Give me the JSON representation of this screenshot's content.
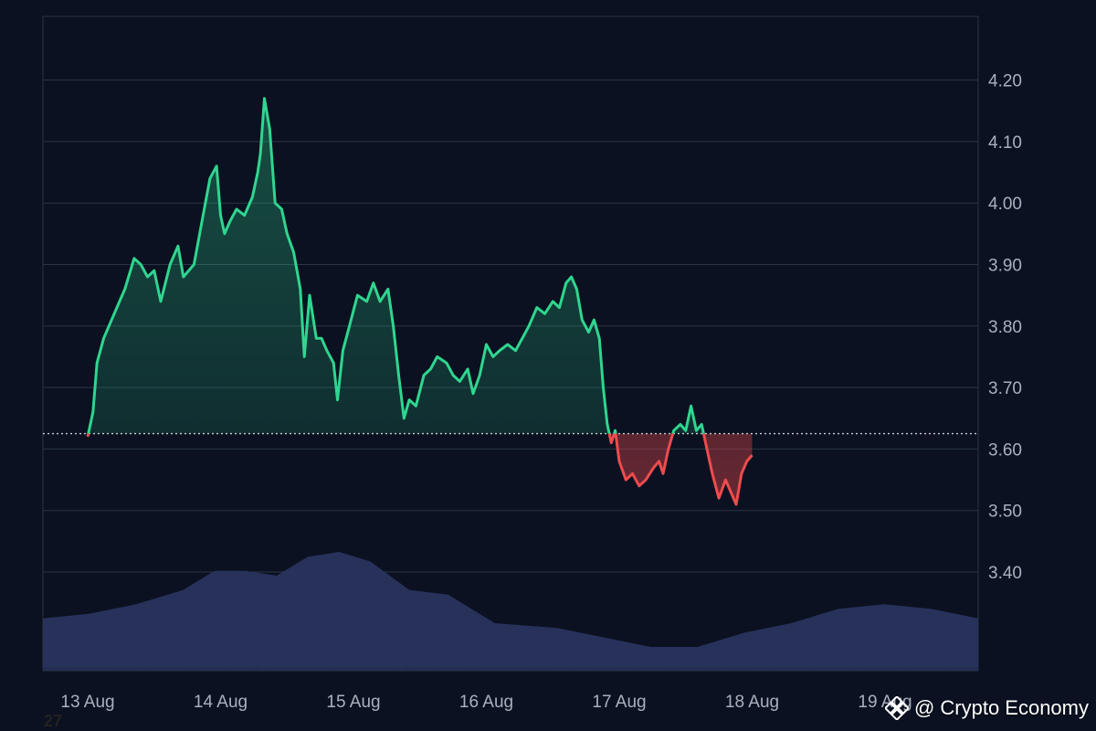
{
  "chart_data": {
    "type": "line",
    "title": "",
    "xlabel": "",
    "ylabel": "",
    "x_ticks": [
      "13 Aug",
      "14 Aug",
      "15 Aug",
      "16 Aug",
      "17 Aug",
      "18 Aug",
      "19 Aug"
    ],
    "y_ticks": [
      "3.40",
      "3.50",
      "3.60",
      "3.70",
      "3.80",
      "3.90",
      "4.00",
      "4.10",
      "4.20"
    ],
    "ylim": [
      3.29,
      4.3
    ],
    "baseline": 3.625,
    "grid": true,
    "axis_position": "right",
    "colors": {
      "above": "#2fd68f",
      "below": "#ef4b4e",
      "volume": "#2a3560",
      "grid": "#2b3446",
      "baseline": "#c8ccd4"
    },
    "series": [
      {
        "values": [
          [
            0.0,
            3.62
          ],
          [
            0.04,
            3.66
          ],
          [
            0.07,
            3.74
          ],
          [
            0.12,
            3.78
          ],
          [
            0.2,
            3.82
          ],
          [
            0.28,
            3.86
          ],
          [
            0.35,
            3.91
          ],
          [
            0.4,
            3.9
          ],
          [
            0.45,
            3.88
          ],
          [
            0.5,
            3.89
          ],
          [
            0.55,
            3.84
          ],
          [
            0.62,
            3.9
          ],
          [
            0.68,
            3.93
          ],
          [
            0.72,
            3.88
          ],
          [
            0.8,
            3.9
          ],
          [
            0.86,
            3.97
          ],
          [
            0.92,
            4.04
          ],
          [
            0.97,
            4.06
          ],
          [
            1.0,
            3.98
          ],
          [
            1.03,
            3.95
          ],
          [
            1.07,
            3.97
          ],
          [
            1.12,
            3.99
          ],
          [
            1.18,
            3.98
          ],
          [
            1.24,
            4.01
          ],
          [
            1.28,
            4.05
          ],
          [
            1.3,
            4.08
          ],
          [
            1.33,
            4.17
          ],
          [
            1.37,
            4.12
          ],
          [
            1.41,
            4.0
          ],
          [
            1.46,
            3.99
          ],
          [
            1.5,
            3.95
          ],
          [
            1.55,
            3.92
          ],
          [
            1.6,
            3.86
          ],
          [
            1.63,
            3.75
          ],
          [
            1.67,
            3.85
          ],
          [
            1.72,
            3.78
          ],
          [
            1.76,
            3.78
          ],
          [
            1.8,
            3.76
          ],
          [
            1.85,
            3.74
          ],
          [
            1.88,
            3.68
          ],
          [
            1.92,
            3.76
          ],
          [
            1.97,
            3.8
          ],
          [
            2.03,
            3.85
          ],
          [
            2.1,
            3.84
          ],
          [
            2.15,
            3.87
          ],
          [
            2.2,
            3.84
          ],
          [
            2.26,
            3.86
          ],
          [
            2.3,
            3.8
          ],
          [
            2.34,
            3.72
          ],
          [
            2.38,
            3.65
          ],
          [
            2.42,
            3.68
          ],
          [
            2.47,
            3.67
          ],
          [
            2.53,
            3.72
          ],
          [
            2.58,
            3.73
          ],
          [
            2.63,
            3.75
          ],
          [
            2.7,
            3.74
          ],
          [
            2.75,
            3.72
          ],
          [
            2.8,
            3.71
          ],
          [
            2.86,
            3.73
          ],
          [
            2.9,
            3.69
          ],
          [
            2.95,
            3.72
          ],
          [
            3.0,
            3.77
          ],
          [
            3.05,
            3.75
          ],
          [
            3.1,
            3.76
          ],
          [
            3.16,
            3.77
          ],
          [
            3.22,
            3.76
          ],
          [
            3.27,
            3.78
          ],
          [
            3.32,
            3.8
          ],
          [
            3.38,
            3.83
          ],
          [
            3.44,
            3.82
          ],
          [
            3.5,
            3.84
          ],
          [
            3.55,
            3.83
          ],
          [
            3.6,
            3.87
          ],
          [
            3.64,
            3.88
          ],
          [
            3.68,
            3.86
          ],
          [
            3.72,
            3.81
          ],
          [
            3.77,
            3.79
          ],
          [
            3.81,
            3.81
          ],
          [
            3.85,
            3.78
          ],
          [
            3.88,
            3.7
          ],
          [
            3.91,
            3.64
          ],
          [
            3.94,
            3.61
          ],
          [
            3.97,
            3.63
          ],
          [
            4.0,
            3.58
          ],
          [
            4.05,
            3.55
          ],
          [
            4.1,
            3.56
          ],
          [
            4.15,
            3.54
          ],
          [
            4.2,
            3.55
          ],
          [
            4.26,
            3.57
          ],
          [
            4.3,
            3.58
          ],
          [
            4.33,
            3.56
          ],
          [
            4.37,
            3.6
          ],
          [
            4.41,
            3.63
          ],
          [
            4.46,
            3.64
          ],
          [
            4.5,
            3.63
          ],
          [
            4.54,
            3.67
          ],
          [
            4.58,
            3.63
          ],
          [
            4.62,
            3.64
          ],
          [
            4.66,
            3.6
          ],
          [
            4.7,
            3.56
          ],
          [
            4.75,
            3.52
          ],
          [
            4.8,
            3.55
          ],
          [
            4.84,
            3.53
          ],
          [
            4.88,
            3.51
          ],
          [
            4.92,
            3.56
          ],
          [
            4.96,
            3.58
          ],
          [
            5.0,
            3.59
          ]
        ]
      }
    ],
    "volume": [
      [
        0.0,
        0.11
      ],
      [
        0.3,
        0.12
      ],
      [
        0.6,
        0.14
      ],
      [
        0.9,
        0.17
      ],
      [
        1.1,
        0.21
      ],
      [
        1.3,
        0.21
      ],
      [
        1.5,
        0.2
      ],
      [
        1.7,
        0.24
      ],
      [
        1.9,
        0.25
      ],
      [
        2.1,
        0.23
      ],
      [
        2.35,
        0.17
      ],
      [
        2.6,
        0.16
      ],
      [
        2.9,
        0.1
      ],
      [
        3.3,
        0.09
      ],
      [
        3.6,
        0.07
      ],
      [
        3.9,
        0.05
      ],
      [
        4.2,
        0.05
      ],
      [
        4.5,
        0.08
      ],
      [
        4.8,
        0.1
      ],
      [
        5.1,
        0.13
      ],
      [
        5.4,
        0.14
      ],
      [
        5.7,
        0.13
      ],
      [
        6.0,
        0.11
      ]
    ]
  },
  "watermark": {
    "text": "@ Crypto Economy",
    "icon": "binance-diamond-icon"
  },
  "corner_label": "27"
}
